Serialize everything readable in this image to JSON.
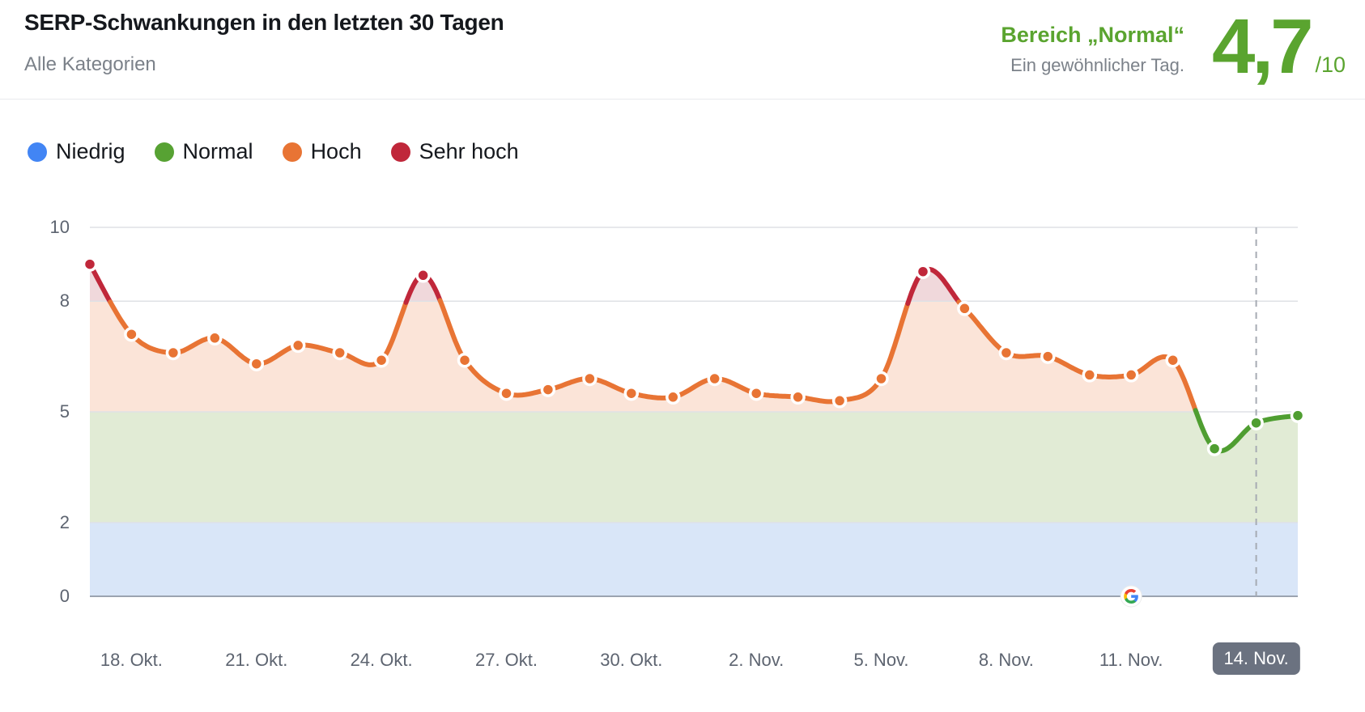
{
  "header": {
    "title": "SERP-Schwankungen in den letzten 30 Tagen",
    "subtitle": "Alle Kategorien",
    "status": {
      "range_label": "Bereich „Normal“",
      "description": "Ein gewöhnlicher Tag.",
      "score": "4,7",
      "score_suffix": "/10",
      "accent_color": "#5aa42f"
    }
  },
  "legend": {
    "items": [
      {
        "label": "Niedrig",
        "color": "#4285f4"
      },
      {
        "label": "Normal",
        "color": "#57a233"
      },
      {
        "label": "Hoch",
        "color": "#e87434"
      },
      {
        "label": "Sehr hoch",
        "color": "#c0273a"
      }
    ]
  },
  "chart_data": {
    "type": "area",
    "title": "SERP-Schwankungen in den letzten 30 Tagen",
    "ylim": [
      0,
      10
    ],
    "yticks": [
      0,
      2,
      5,
      8,
      10
    ],
    "xticklabels": [
      "18. Okt.",
      "21. Okt.",
      "24. Okt.",
      "27. Okt.",
      "30. Okt.",
      "2. Nov.",
      "5. Nov.",
      "8. Nov.",
      "11. Nov.",
      "14. Nov."
    ],
    "xtick_point_indices": [
      1,
      4,
      7,
      10,
      13,
      16,
      19,
      22,
      25,
      28
    ],
    "values": [
      9.0,
      7.1,
      6.6,
      7.0,
      6.3,
      6.8,
      6.6,
      6.4,
      8.7,
      6.4,
      5.5,
      5.6,
      5.9,
      5.5,
      5.4,
      5.9,
      5.5,
      5.4,
      5.3,
      5.9,
      8.8,
      7.8,
      6.6,
      6.5,
      6.0,
      6.0,
      6.4,
      4.0,
      4.7,
      4.9
    ],
    "bands": [
      {
        "label": "Niedrig",
        "from": 0,
        "to": 2,
        "fill": "#d9e6f8",
        "line": "#4285f4"
      },
      {
        "label": "Normal",
        "from": 2,
        "to": 5,
        "fill": "#e1ebd5",
        "line": "#4f9e31"
      },
      {
        "label": "Hoch",
        "from": 5,
        "to": 8,
        "fill": "#fbe4d8",
        "line": "#e87434"
      },
      {
        "label": "Sehr hoch",
        "from": 8,
        "to": 10,
        "fill": "#f0d8db",
        "line": "#c0273a"
      }
    ],
    "grid": true,
    "legend_position": "top-left",
    "today_marker_index": 28,
    "today_badge_color": "#6b7280",
    "google_event_index": 25,
    "gridline_color": "#dfe1e5",
    "baseline_color": "#9ba3b0",
    "dashed_line_color": "#a6abb3"
  }
}
